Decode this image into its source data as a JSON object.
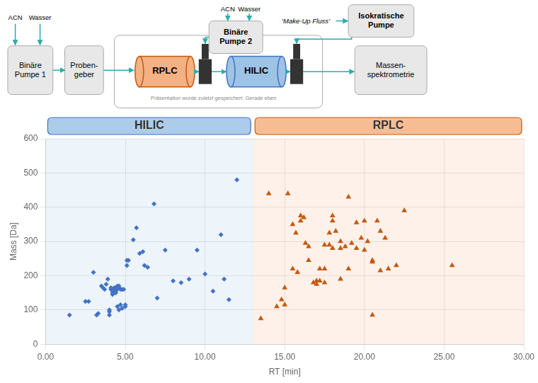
{
  "chart_data": {
    "type": "scatter",
    "annotations": [
      "ACN",
      "Wasser",
      "Binäre\nPumpe 1",
      "Proben-\ngeber",
      "RPLC",
      "HILIC",
      "Massen-\nspektrometrie",
      "ACN",
      "Wasser",
      "Binäre\nPumpe 2",
      "‘Make-Up Fluss’",
      "Isokratische\nPumpe",
      "Präsentation wurde zuletzt gespeichert: Gerade eben"
    ],
    "x_label": "RT [min]",
    "y_label": "Mass [Da]",
    "series": [
      {
        "name": "HILIC",
        "color": "#4472C4",
        "marker": "diamond",
        "x": [
          1.5,
          2.5,
          2.7,
          3.0,
          3.2,
          3.3,
          3.5,
          3.6,
          3.7,
          3.8,
          3.9,
          4.0,
          4.0,
          4.0,
          4.1,
          4.1,
          4.2,
          4.2,
          4.2,
          4.3,
          4.3,
          4.3,
          4.4,
          4.4,
          4.4,
          4.5,
          4.5,
          4.5,
          4.5,
          4.6,
          4.6,
          4.6,
          4.7,
          4.7,
          4.8,
          4.8,
          4.9,
          5.0,
          5.0,
          5.1,
          5.1,
          5.2,
          5.5,
          5.7,
          5.9,
          6.1,
          6.2,
          6.4,
          6.8,
          7.0,
          7.5,
          8.0,
          8.5,
          9.0,
          9.5,
          10.0,
          10.5,
          11.0,
          11.2,
          11.5,
          12.0
        ],
        "values": [
          85,
          125,
          125,
          210,
          85,
          90,
          170,
          165,
          160,
          175,
          190,
          100,
          95,
          85,
          165,
          160,
          155,
          150,
          145,
          165,
          160,
          155,
          165,
          155,
          150,
          170,
          165,
          160,
          110,
          170,
          165,
          100,
          160,
          115,
          160,
          105,
          160,
          115,
          110,
          245,
          230,
          245,
          305,
          340,
          265,
          270,
          230,
          225,
          410,
          135,
          275,
          185,
          180,
          190,
          275,
          205,
          155,
          320,
          190,
          130,
          480
        ]
      },
      {
        "name": "RPLC",
        "color": "#C45911",
        "marker": "triangle",
        "x": [
          13.5,
          14.0,
          14.5,
          14.8,
          15.0,
          15.0,
          15.2,
          15.5,
          15.5,
          15.7,
          15.8,
          16.0,
          16.0,
          16.2,
          16.3,
          16.5,
          16.5,
          16.8,
          17.0,
          17.0,
          17.2,
          17.5,
          17.5,
          17.5,
          17.8,
          17.8,
          18.0,
          18.0,
          18.0,
          18.2,
          18.5,
          18.5,
          18.8,
          19.0,
          19.0,
          19.2,
          19.5,
          19.5,
          19.8,
          20.0,
          20.0,
          20.2,
          20.5,
          20.5,
          20.8,
          21.0,
          21.0,
          21.3,
          21.5,
          22.0,
          22.5,
          25.5,
          20.5,
          17.2,
          18.5
        ],
        "values": [
          75,
          440,
          110,
          130,
          115,
          165,
          440,
          350,
          220,
          325,
          210,
          375,
          360,
          370,
          295,
          285,
          245,
          180,
          185,
          175,
          220,
          220,
          290,
          180,
          325,
          290,
          375,
          360,
          280,
          330,
          300,
          280,
          285,
          430,
          220,
          295,
          355,
          280,
          310,
          360,
          275,
          300,
          245,
          240,
          360,
          330,
          215,
          310,
          220,
          230,
          390,
          230,
          85,
          185,
          190
        ]
      }
    ],
    "regions": [
      {
        "name": "HILIC",
        "from": 0.0,
        "to": 13.0,
        "color": "#9DC3E6"
      },
      {
        "name": "RPLC",
        "from": 13.0,
        "to": 30.0,
        "color": "#F4B183"
      }
    ],
    "xlim": [
      0,
      30
    ],
    "ylim": [
      0,
      600
    ],
    "xticks": [
      {
        "value": 0,
        "label": "0.00"
      },
      {
        "value": 5,
        "label": "5.00"
      },
      {
        "value": 10,
        "label": "10.00"
      },
      {
        "value": 15,
        "label": "15.00"
      },
      {
        "value": 20,
        "label": "20.00"
      },
      {
        "value": 25,
        "label": "25.00"
      },
      {
        "value": 30,
        "label": "30.00"
      }
    ],
    "yticks": [
      0,
      100,
      200,
      300,
      400,
      500,
      600
    ],
    "grid": true
  }
}
